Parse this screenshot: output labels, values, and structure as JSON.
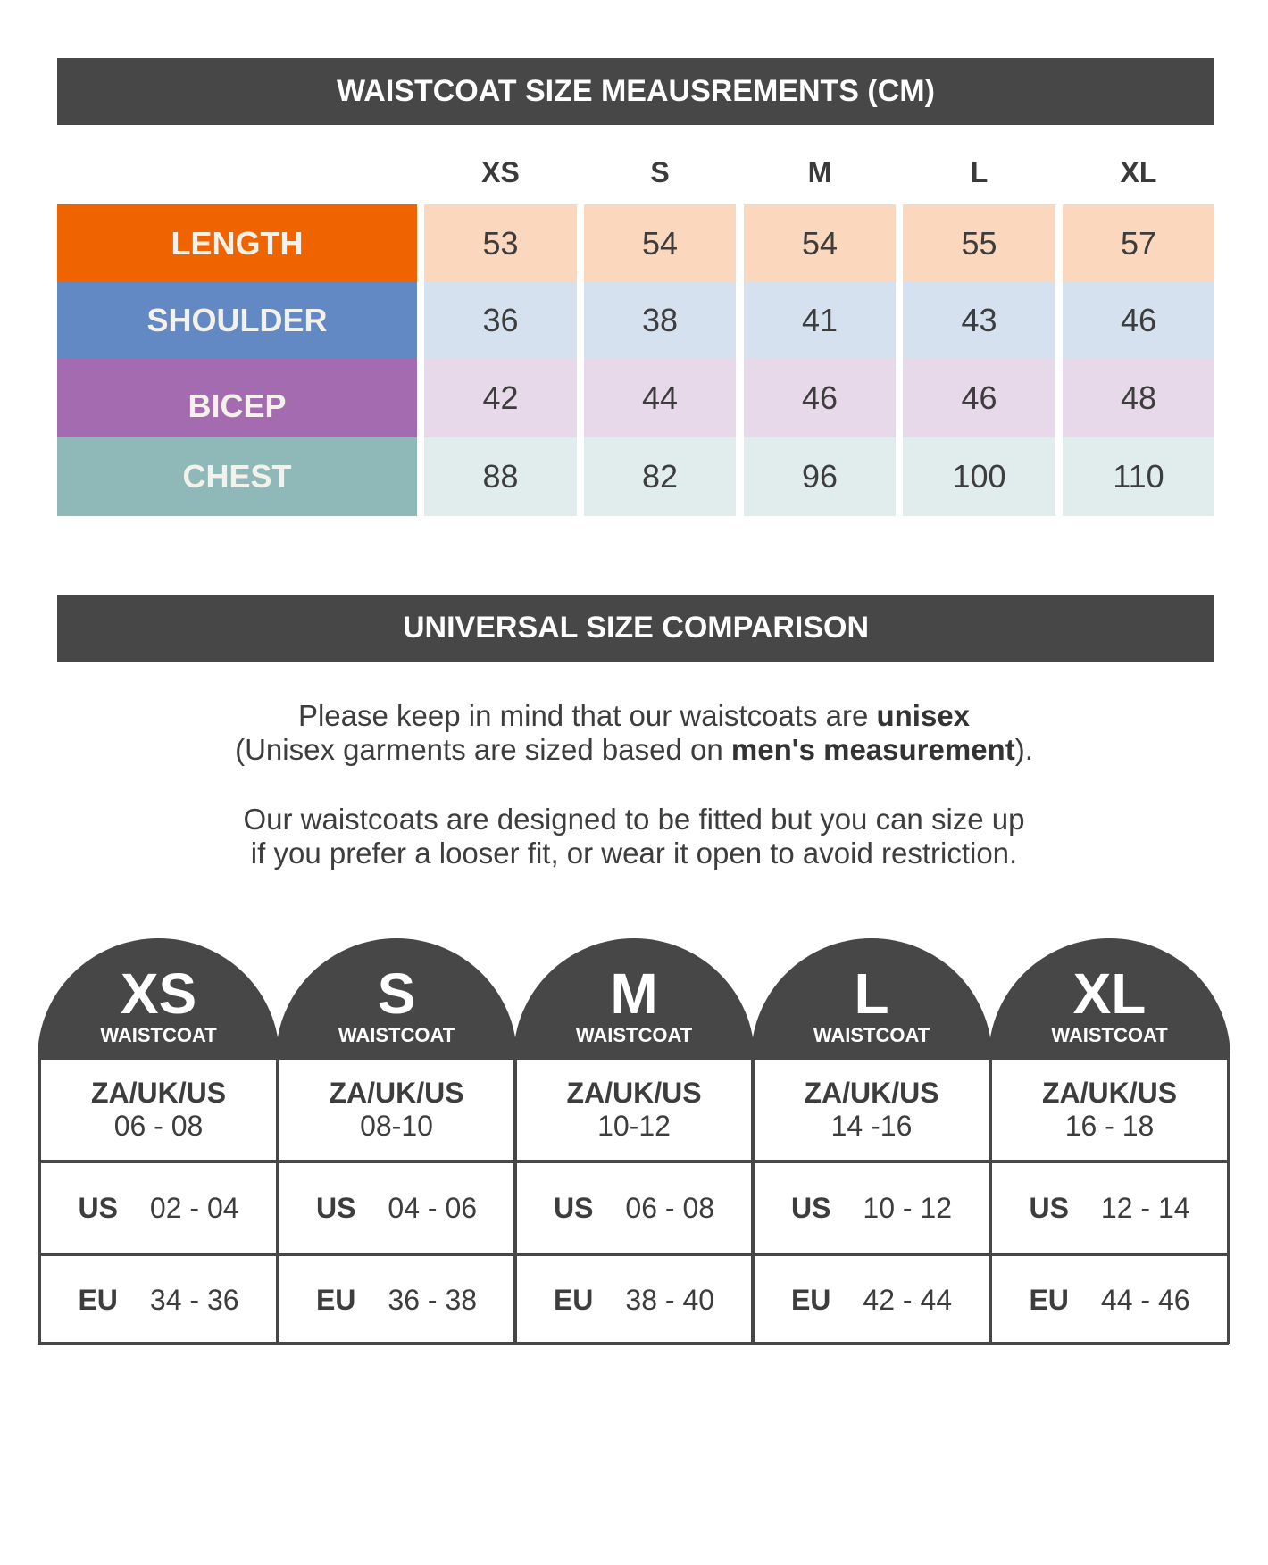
{
  "measurements": {
    "title": "WAISTCOAT SIZE MEAUSREMENTS (CM)",
    "sizes": [
      "XS",
      "S",
      "M",
      "L",
      "XL"
    ],
    "rows": [
      {
        "label": "LENGTH",
        "values": [
          "53",
          "54",
          "54",
          "55",
          "57"
        ],
        "color": "#f06400",
        "light": "#fbd7bd"
      },
      {
        "label": "SHOULDER",
        "values": [
          "36",
          "38",
          "41",
          "43",
          "46"
        ],
        "color": "#6389c4",
        "light": "#d6e1ef"
      },
      {
        "label": "BICEP",
        "values": [
          "42",
          "44",
          "46",
          "46",
          "48"
        ],
        "color": "#a56bb0",
        "light": "#e8d9ea"
      },
      {
        "label": "CHEST",
        "values": [
          "88",
          "82",
          "96",
          "100",
          "110"
        ],
        "color": "#8fb8b9",
        "light": "#e1ecec"
      }
    ]
  },
  "comparison": {
    "title": "UNIVERSAL SIZE COMPARISON",
    "line1_a": "Please keep in mind that our waistcoats are ",
    "line1_b": "unisex",
    "line2_a": "(Unisex garments are sized based on ",
    "line2_b": "men's measurement",
    "line2_c": ").",
    "line3": "Our waistcoats are designed to be fitted but you can size up",
    "line4": "if you prefer a looser fit, or wear it open to avoid restriction.",
    "columns": [
      {
        "size": "XS",
        "sub": "WAISTCOAT",
        "za_label": "ZA/UK/US",
        "za": "06 - 08",
        "us_label": "US",
        "us": "02 - 04",
        "eu_label": "EU",
        "eu": "34 - 36"
      },
      {
        "size": "S",
        "sub": "WAISTCOAT",
        "za_label": "ZA/UK/US",
        "za": "08-10",
        "us_label": "US",
        "us": "04 - 06",
        "eu_label": "EU",
        "eu": "36 - 38"
      },
      {
        "size": "M",
        "sub": "WAISTCOAT",
        "za_label": "ZA/UK/US",
        "za": "10-12",
        "us_label": "US",
        "us": "06 - 08",
        "eu_label": "EU",
        "eu": "38 - 40"
      },
      {
        "size": "L",
        "sub": "WAISTCOAT",
        "za_label": "ZA/UK/US",
        "za": "14 -16",
        "us_label": "US",
        "us": "10 - 12",
        "eu_label": "EU",
        "eu": "42 - 44"
      },
      {
        "size": "XL",
        "sub": "WAISTCOAT",
        "za_label": "ZA/UK/US",
        "za": "16 - 18",
        "us_label": "US",
        "us": "12 - 14",
        "eu_label": "EU",
        "eu": "44 - 46"
      }
    ]
  }
}
